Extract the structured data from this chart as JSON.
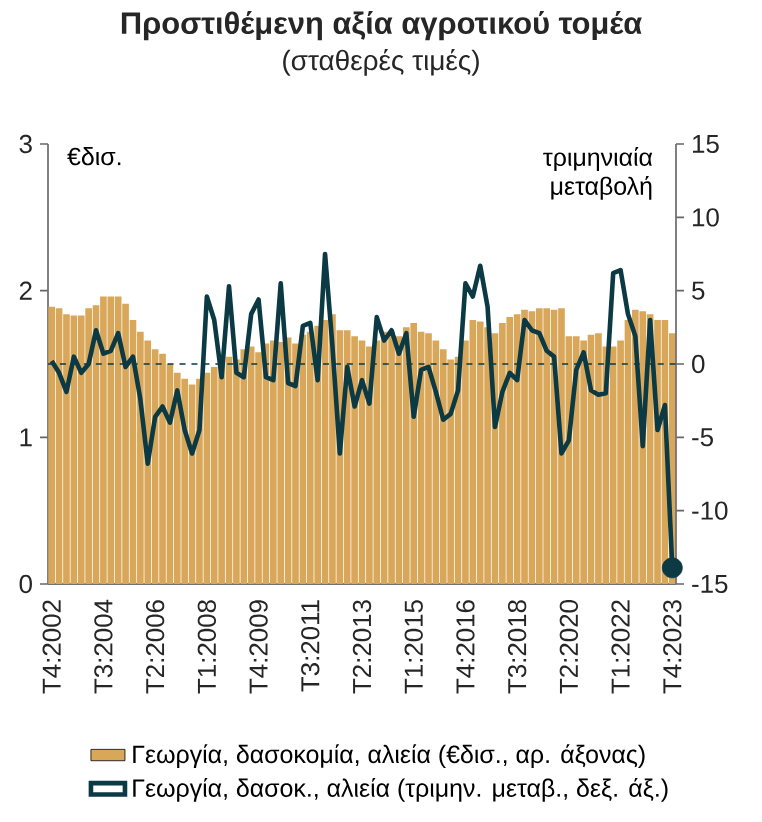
{
  "chart_data": {
    "type": "bar",
    "title": "Προστιθέμενη αξία αγροτικού τομέα",
    "subtitle": "(σταθερές τιμές)",
    "ylabel": "€δισ.",
    "y2label": "τριμηνιαία μεταβολή",
    "categories": [
      "T4:2002",
      null,
      null,
      null,
      null,
      null,
      null,
      "T3:2004",
      null,
      null,
      null,
      null,
      null,
      null,
      "T2:2006",
      null,
      null,
      null,
      null,
      null,
      null,
      "T1:2008",
      null,
      null,
      null,
      null,
      null,
      null,
      "T4:2009",
      null,
      null,
      null,
      null,
      null,
      null,
      "T3:2011",
      null,
      null,
      null,
      null,
      null,
      null,
      "T2:2013",
      null,
      null,
      null,
      null,
      null,
      null,
      "T1:2015",
      null,
      null,
      null,
      null,
      null,
      null,
      "T4:2016",
      null,
      null,
      null,
      null,
      null,
      null,
      "T3:2018",
      null,
      null,
      null,
      null,
      null,
      null,
      "T2:2020",
      null,
      null,
      null,
      null,
      null,
      null,
      "T1:2022",
      null,
      null,
      null,
      null,
      null,
      null,
      "T4:2023"
    ],
    "series": [
      {
        "name": "Γεωργία, δασοκομία, αλιεία (€δισ., αρ. άξονας)",
        "color": "#d9a75a",
        "values": [
          1.89,
          1.88,
          1.84,
          1.83,
          1.83,
          1.88,
          1.9,
          1.96,
          1.96,
          1.96,
          1.91,
          1.8,
          1.72,
          1.66,
          1.6,
          1.57,
          1.5,
          1.44,
          1.4,
          1.36,
          1.4,
          1.44,
          1.48,
          1.53,
          1.55,
          1.53,
          1.6,
          1.62,
          1.58,
          1.64,
          1.66,
          1.65,
          1.68,
          1.64,
          1.7,
          1.72,
          1.76,
          1.8,
          1.84,
          1.73,
          1.73,
          1.69,
          1.66,
          1.62,
          1.66,
          1.72,
          1.72,
          1.69,
          1.75,
          1.78,
          1.72,
          1.71,
          1.66,
          1.6,
          1.53,
          1.55,
          1.66,
          1.8,
          1.79,
          1.75,
          1.71,
          1.78,
          1.82,
          1.84,
          1.87,
          1.86,
          1.88,
          1.88,
          1.87,
          1.88,
          1.69,
          1.69,
          1.66,
          1.7,
          1.71,
          1.62,
          1.62,
          1.66,
          1.8,
          1.87,
          1.86,
          1.84,
          1.8,
          1.8,
          1.71
        ]
      },
      {
        "name": "Γεωργία, δασοκ., αλιεία (τριμην. μεταβ., δεξ. άξ.)",
        "type": "line",
        "axis": "y2",
        "color": "#0b3a44",
        "values": [
          0.2,
          -0.6,
          -1.9,
          0.5,
          -0.6,
          0.0,
          2.3,
          0.7,
          0.9,
          2.1,
          -0.2,
          0.5,
          -2.4,
          -6.8,
          -3.6,
          -2.9,
          -4.0,
          -1.8,
          -4.5,
          -6.1,
          -4.5,
          4.6,
          3.0,
          -0.9,
          5.3,
          -0.6,
          -0.9,
          3.4,
          4.4,
          -0.9,
          -1.1,
          5.5,
          -1.3,
          -1.5,
          2.6,
          2.8,
          -1.1,
          7.5,
          1.2,
          -6.1,
          -0.2,
          -2.9,
          -1.1,
          -2.7,
          3.2,
          1.6,
          2.3,
          0.7,
          2.1,
          -3.6,
          -0.4,
          -0.2,
          -1.9,
          -3.8,
          -3.4,
          -1.8,
          5.5,
          4.6,
          6.7,
          3.9,
          -4.3,
          -1.9,
          -0.6,
          -1.1,
          3.0,
          2.3,
          2.1,
          0.9,
          0.5,
          -6.1,
          -5.2,
          -0.4,
          0.8,
          -1.8,
          -2.1,
          -2.0,
          6.2,
          6.4,
          3.4,
          1.9,
          -5.6,
          3.0,
          -4.5,
          -2.8,
          -13.9
        ]
      },
      {
        "type": "scatter",
        "axis": "y2",
        "marker": "circle",
        "color": "#0b3a44",
        "values": [
          null,
          null,
          null,
          null,
          null,
          null,
          null,
          null,
          null,
          null,
          null,
          null,
          null,
          null,
          null,
          null,
          null,
          null,
          null,
          null,
          null,
          null,
          null,
          null,
          null,
          null,
          null,
          null,
          null,
          null,
          null,
          null,
          null,
          null,
          null,
          null,
          null,
          null,
          null,
          null,
          null,
          null,
          null,
          null,
          null,
          null,
          null,
          null,
          null,
          null,
          null,
          null,
          null,
          null,
          null,
          null,
          null,
          null,
          null,
          null,
          null,
          null,
          null,
          null,
          null,
          null,
          null,
          null,
          null,
          null,
          null,
          null,
          null,
          null,
          null,
          null,
          null,
          null,
          null,
          null,
          null,
          null,
          null,
          null,
          -13.9
        ]
      }
    ],
    "ylim": [
      0,
      3
    ],
    "yticks": [
      0,
      1,
      2,
      3
    ],
    "y2lim": [
      -15,
      15
    ],
    "y2ticks": [
      -15,
      -10,
      -5,
      0,
      5,
      10,
      15
    ],
    "ref_lines": [
      {
        "axis": "y2",
        "value": 0,
        "line_style": "dashed",
        "color": "#0b3a44"
      }
    ],
    "legend": "bottom"
  }
}
